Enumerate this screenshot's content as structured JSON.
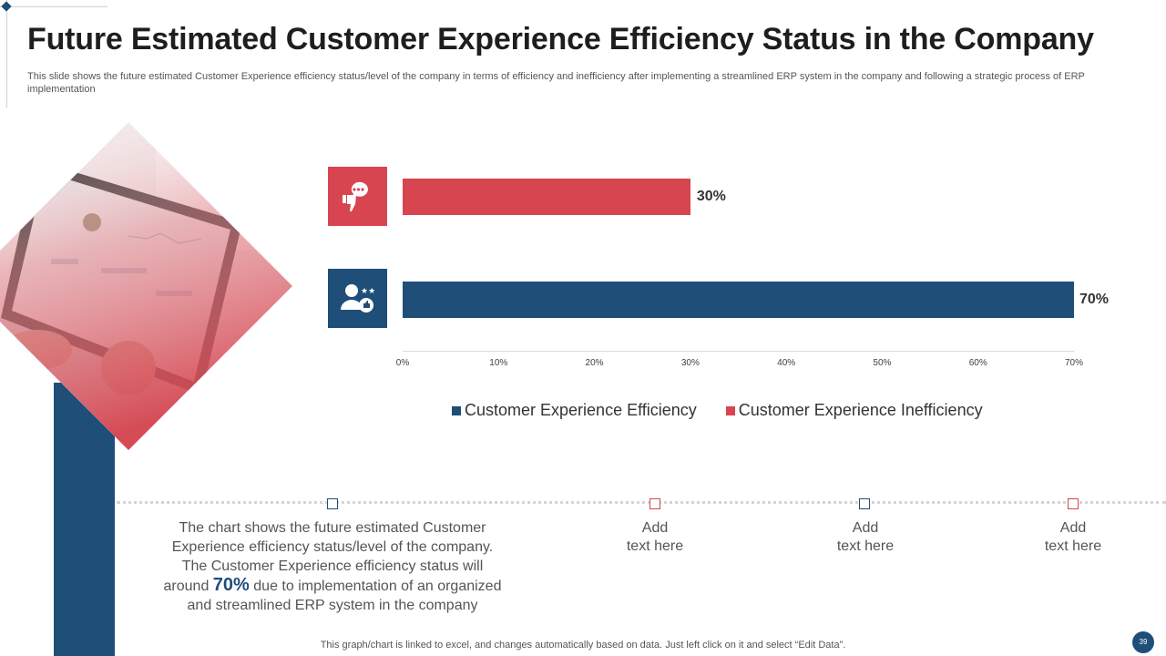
{
  "slide": {
    "title": "Future Estimated Customer Experience Efficiency Status in the Company",
    "subtitle": "This slide shows the future estimated Customer Experience efficiency status/level of the company in terms of efficiency and inefficiency after implementing a streamlined ERP system in the company and following a strategic process of ERP implementation",
    "footer": "This graph/chart is linked to excel,  and changes automatically based on data. Just left click on it and select “Edit Data”.",
    "page_number": "39"
  },
  "colors": {
    "efficiency": "#1f4e79",
    "inefficiency": "#d64550"
  },
  "icons": {
    "inefficiency": "thumbs-down-chat-icon",
    "efficiency": "user-star-thumbs-up-icon"
  },
  "chart_data": {
    "type": "bar",
    "orientation": "horizontal",
    "categories": [
      "Customer Experience Inefficiency",
      "Customer Experience Efficiency"
    ],
    "values": [
      30,
      70
    ],
    "value_labels": [
      "30%",
      "70%"
    ],
    "xlim": [
      0,
      70
    ],
    "x_ticks": [
      "0%",
      "10%",
      "20%",
      "30%",
      "40%",
      "50%",
      "60%",
      "70%"
    ],
    "legend": [
      "Customer Experience Efficiency",
      "Customer Experience Inefficiency"
    ],
    "legend_position": "bottom"
  },
  "description": {
    "line1": "The chart shows the future  estimated Customer",
    "line2": "Experience efficiency status/level  of the company.",
    "line3": "The Customer Experience efficiency status will",
    "line4_pre": "around",
    "highlight": "70%",
    "line4_post": "due to implementation of an organized",
    "line5": "and streamlined ERP system in the company"
  },
  "placeholders": [
    {
      "line1": "Add",
      "line2": "text here"
    },
    {
      "line1": "Add",
      "line2": "text here"
    },
    {
      "line1": "Add",
      "line2": "text here"
    }
  ]
}
